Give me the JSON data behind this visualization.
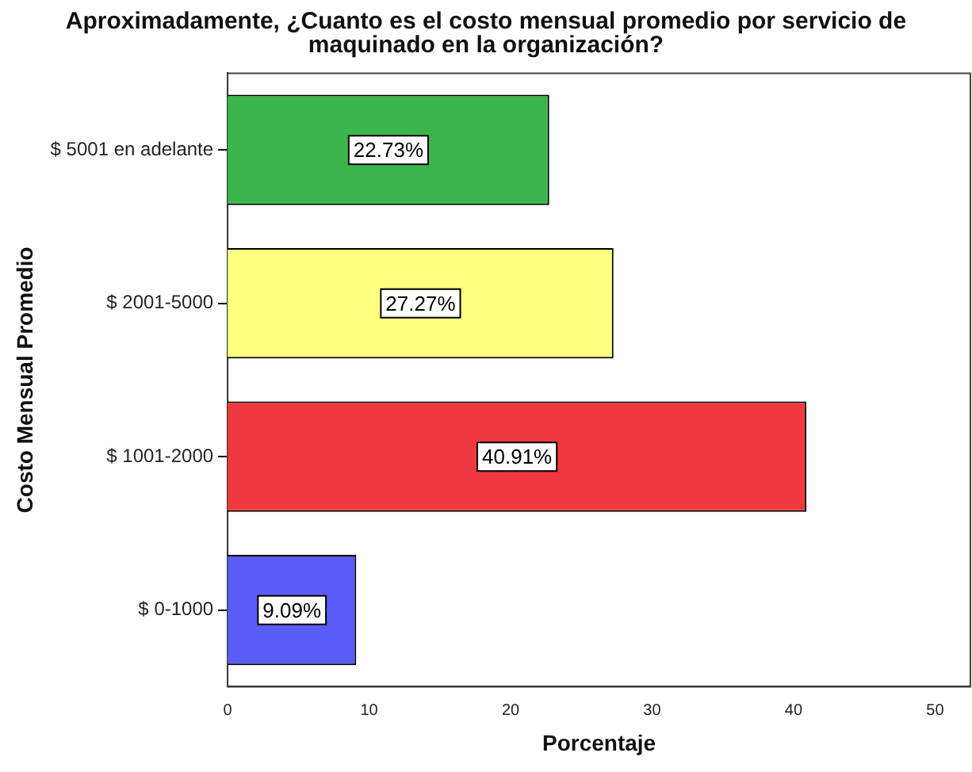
{
  "chart_data": {
    "type": "bar",
    "orientation": "horizontal",
    "title": "Aproximadamente, ¿Cuanto es el costo mensual promedio por servicio de maquinado en la organización?",
    "xlabel": "Porcentaje",
    "ylabel": "Costo Mensual Promedio",
    "categories": [
      "$ 5001 en adelante",
      "$ 2001-5000",
      "$ 1001-2000",
      "$ 0-1000"
    ],
    "values": [
      22.73,
      27.27,
      40.91,
      9.09
    ],
    "colors": [
      "#3cb64a",
      "#ffff80",
      "#ee3a3e",
      "#5a5cf7"
    ],
    "value_labels": [
      "22.73%",
      "27.27%",
      "40.91%",
      "9.09%"
    ],
    "xlim": [
      0,
      52.5
    ],
    "xticks": [
      0,
      10,
      20,
      30,
      40,
      50
    ],
    "grid": false,
    "legend": false
  }
}
